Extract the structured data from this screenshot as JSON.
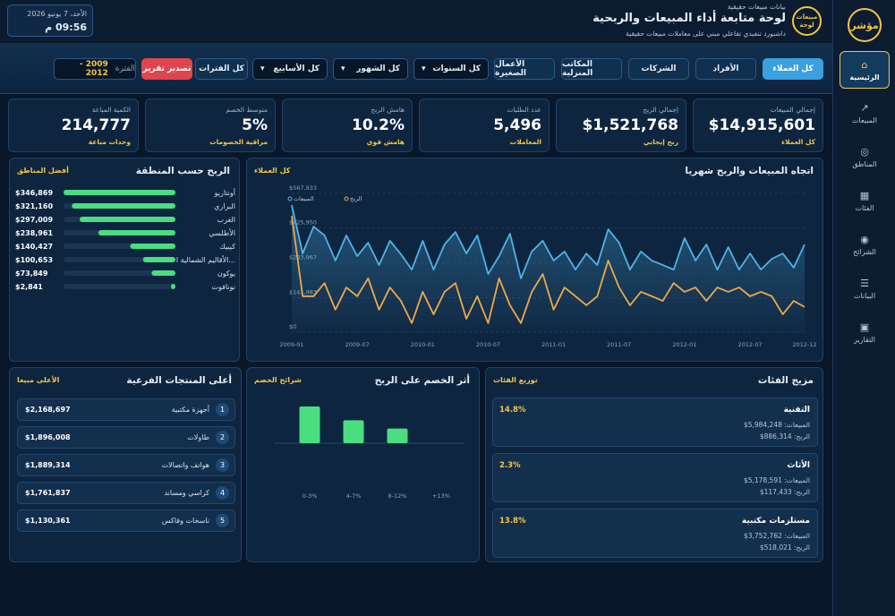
{
  "sidebar": {
    "logo": "مؤشر",
    "nav": [
      "الرئيسية",
      "المبيعات",
      "المناطق",
      "الفئات",
      "الشرائح",
      "البيانات",
      "التقارير"
    ]
  },
  "header": {
    "badge_top": "مبيعات",
    "badge_bottom": "لوحة",
    "kicker": "بيانات مبيعات حقيقية",
    "title": "لوحة متابعة أداء المبيعات والربحية",
    "subtitle": "داشبورد تنفيذي تفاعلي مبني على معاملات مبيعات حقيقية",
    "date": "الأحد، 7 يونيو 2026",
    "time": "09:56 م"
  },
  "filters": {
    "segments": [
      "كل العملاء",
      "الأفراد",
      "الشركات",
      "المكاتب المنزلية",
      "الأعمال الصغيرة"
    ],
    "dropdowns": [
      "كل السنوات",
      "كل الشهور",
      "كل الأسابيع"
    ],
    "all_periods": "كل الفترات",
    "export": "تصدير تقرير",
    "period_label": "الفترة",
    "period_value": "2009 - 2012"
  },
  "kpis": [
    {
      "label": "إجمالي المبيعات",
      "value": "$14,915,601",
      "note": "كل العملاء"
    },
    {
      "label": "إجمالي الربح",
      "value": "$1,521,768",
      "note": "ربح إيجابي"
    },
    {
      "label": "عدد الطلبات",
      "value": "5,496",
      "note": "المعاملات"
    },
    {
      "label": "هامش الربح",
      "value": "10.2%",
      "note": "هامش قوي"
    },
    {
      "label": "متوسط الخصم",
      "value": "5%",
      "note": "مراقبة الخصومات"
    },
    {
      "label": "الكمية المباعة",
      "value": "214,777",
      "note": "وحدات مباعة"
    }
  ],
  "region_profit": {
    "type": "bar",
    "title": "الربح حسب المنطقة",
    "tag": "أفضل المناطق",
    "color": "#4ade80",
    "categories": [
      "أونتاريو",
      "البراري",
      "الغرب",
      "الأطلسي",
      "كيبيك",
      "الأقاليم الشمالية ا...",
      "يوكون",
      "نونافوت"
    ],
    "values": [
      346869,
      321160,
      297009,
      238961,
      140427,
      100653,
      73849,
      2841
    ],
    "value_labels": [
      "$346,869",
      "$321,160",
      "$297,009",
      "$238,961",
      "$140,427",
      "$100,653",
      "$73,849",
      "$2,841"
    ]
  },
  "monthly_trend": {
    "type": "line",
    "title": "اتجاه المبيعات والربح شهريا",
    "tag": "كل العملاء",
    "categories": [
      "2009-01",
      null,
      null,
      null,
      null,
      null,
      "2009-07",
      null,
      null,
      null,
      null,
      null,
      "2010-01",
      null,
      null,
      null,
      null,
      null,
      "2010-07",
      null,
      null,
      null,
      null,
      null,
      "2011-01",
      null,
      null,
      null,
      null,
      null,
      "2011-07",
      null,
      null,
      null,
      null,
      null,
      "2012-01",
      null,
      null,
      null,
      null,
      null,
      "2012-07",
      null,
      null,
      null,
      null,
      "2012-12"
    ],
    "series": [
      {
        "name": "المبيعات",
        "color": "#4fb3e8",
        "values": [
          520000,
          322000,
          432000,
          396000,
          293000,
          396000,
          311000,
          366000,
          275000,
          374000,
          319000,
          256000,
          374000,
          256000,
          359000,
          410000,
          322000,
          396000,
          238000,
          311000,
          403000,
          220000,
          330000,
          374000,
          293000,
          330000,
          256000,
          322000,
          275000,
          421000,
          366000,
          256000,
          330000,
          293000,
          275000,
          256000,
          385000,
          293000,
          359000,
          256000,
          348000,
          256000,
          322000,
          256000,
          300000,
          322000,
          264000,
          359000
        ]
      },
      {
        "name": "الربح",
        "color": "#f0a848",
        "values": [
          476000,
          147000,
          147000,
          201000,
          92000,
          183000,
          147000,
          220000,
          92000,
          183000,
          128000,
          37000,
          165000,
          73000,
          165000,
          201000,
          55000,
          147000,
          37000,
          220000,
          110000,
          37000,
          165000,
          238000,
          92000,
          183000,
          147000,
          110000,
          147000,
          293000,
          183000,
          110000,
          165000,
          147000,
          128000,
          201000,
          165000,
          183000,
          128000,
          183000,
          165000,
          183000,
          147000,
          165000,
          147000,
          73000,
          128000,
          103000
        ]
      }
    ],
    "ylim": [
      0,
      567933
    ],
    "yticks": [
      {
        "value": 0,
        "label": "$0"
      },
      {
        "value": 141983,
        "label": "$141,983"
      },
      {
        "value": 283967,
        "label": "$283,967"
      },
      {
        "value": 425950,
        "label": "$425,950"
      },
      {
        "value": 567933,
        "label": "$567,933"
      }
    ],
    "grid": true
  },
  "top_products": {
    "title": "أعلى المنتجات الفرعية",
    "tag": "الأعلى مبيعا",
    "items": [
      {
        "rank": "1",
        "name": "أجهزة مكتبية",
        "value": "$2,168,697"
      },
      {
        "rank": "2",
        "name": "طاولات",
        "value": "$1,896,008"
      },
      {
        "rank": "3",
        "name": "هواتف واتصالات",
        "value": "$1,889,314"
      },
      {
        "rank": "4",
        "name": "كراسي ومساند",
        "value": "$1,761,837"
      },
      {
        "rank": "5",
        "name": "ناسخات وفاكس",
        "value": "$1,130,361"
      }
    ]
  },
  "discount_effect": {
    "type": "bar",
    "title": "أثر الخصم على الربح",
    "tag": "شرائح الخصم",
    "color": "#4ade80",
    "categories": [
      "0-3%",
      "4-7%",
      "8-12%",
      "+13%"
    ],
    "values": [
      40,
      25,
      16,
      0
    ]
  },
  "category_mix": {
    "title": "مزيج الفئات",
    "tag": "توزيع الفئات",
    "items": [
      {
        "name": "التقنية",
        "margin": "14.8%",
        "sales_label": "المبيعات:",
        "sales": "5,984,248$",
        "profit_label": "الربح:",
        "profit": "886,314$"
      },
      {
        "name": "الأثاث",
        "margin": "2.3%",
        "sales_label": "المبيعات:",
        "sales": "5,178,591$",
        "profit_label": "الربح:",
        "profit": "117,433$"
      },
      {
        "name": "مستلزمات مكتبية",
        "margin": "13.8%",
        "sales_label": "المبيعات:",
        "sales": "3,752,762$",
        "profit_label": "الربح:",
        "profit": "518,021$"
      }
    ]
  }
}
